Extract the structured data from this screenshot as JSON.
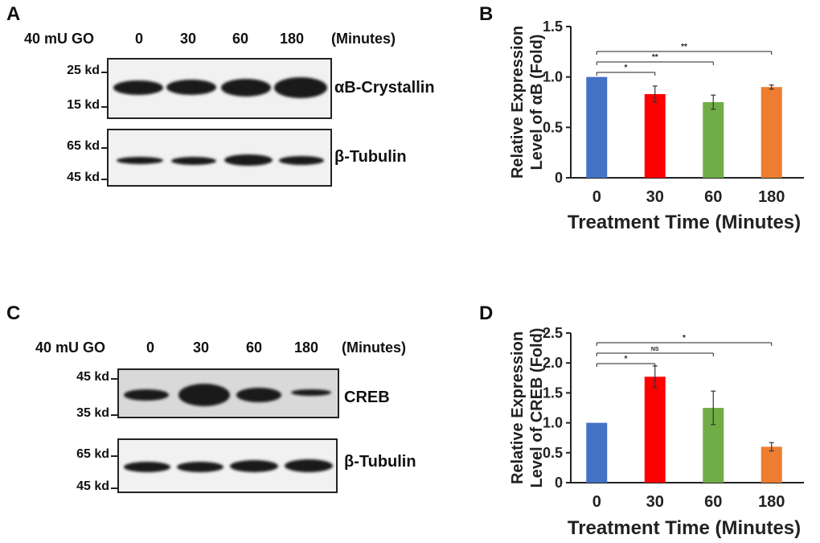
{
  "panels": {
    "A": {
      "label": "A",
      "treatment": "40 mU  GO",
      "times": [
        "0",
        "30",
        "60",
        "180"
      ],
      "unit": "(Minutes)",
      "blots": [
        {
          "protein": "αB-Crystallin",
          "mw_top": "25 kd",
          "mw_bottom": "15 kd"
        },
        {
          "protein": "β-Tubulin",
          "mw_top": "65 kd",
          "mw_bottom": "45 kd"
        }
      ]
    },
    "C": {
      "label": "C",
      "treatment": "40 mU  GO",
      "times": [
        "0",
        "30",
        "60",
        "180"
      ],
      "unit": "(Minutes)",
      "blots": [
        {
          "protein": "CREB",
          "mw_top": "45 kd",
          "mw_bottom": "35 kd"
        },
        {
          "protein": "β-Tubulin",
          "mw_top": "65 kd",
          "mw_bottom": "45 kd"
        }
      ]
    },
    "B": {
      "label": "B"
    },
    "D": {
      "label": "D"
    }
  },
  "chart_data": [
    {
      "panel": "B",
      "type": "bar",
      "categories": [
        "0",
        "30",
        "60",
        "180"
      ],
      "values": [
        1.0,
        0.83,
        0.75,
        0.9
      ],
      "errors": [
        0.0,
        0.08,
        0.07,
        0.02
      ],
      "colors": [
        "#4472c4",
        "#ff0000",
        "#70ad47",
        "#ed7d31"
      ],
      "xlabel": "Treatment Time (Minutes)",
      "ylabel": [
        "Relative Expression",
        "Level of αB (Fold)"
      ],
      "ylim": [
        0,
        1.5
      ],
      "yticks": [
        "0",
        "0.5",
        "1.0",
        "1.5"
      ],
      "significance": [
        {
          "from": "0",
          "to": "30",
          "label": "*"
        },
        {
          "from": "0",
          "to": "60",
          "label": "**"
        },
        {
          "from": "0",
          "to": "180",
          "label": "**"
        }
      ]
    },
    {
      "panel": "D",
      "type": "bar",
      "categories": [
        "0",
        "30",
        "60",
        "180"
      ],
      "values": [
        1.0,
        1.77,
        1.25,
        0.6
      ],
      "errors": [
        0.0,
        0.18,
        0.28,
        0.07
      ],
      "colors": [
        "#4472c4",
        "#ff0000",
        "#70ad47",
        "#ed7d31"
      ],
      "xlabel": "Treatment Time (Minutes)",
      "ylabel": [
        "Relative Expression",
        "Level of CREB (Fold)"
      ],
      "ylim": [
        0,
        2.5
      ],
      "yticks": [
        "0",
        "0.5",
        "1.0",
        "1.5",
        "2.0",
        "2.5"
      ],
      "significance": [
        {
          "from": "0",
          "to": "30",
          "label": "*"
        },
        {
          "from": "0",
          "to": "60",
          "label": "NS"
        },
        {
          "from": "0",
          "to": "180",
          "label": "*"
        }
      ]
    }
  ]
}
